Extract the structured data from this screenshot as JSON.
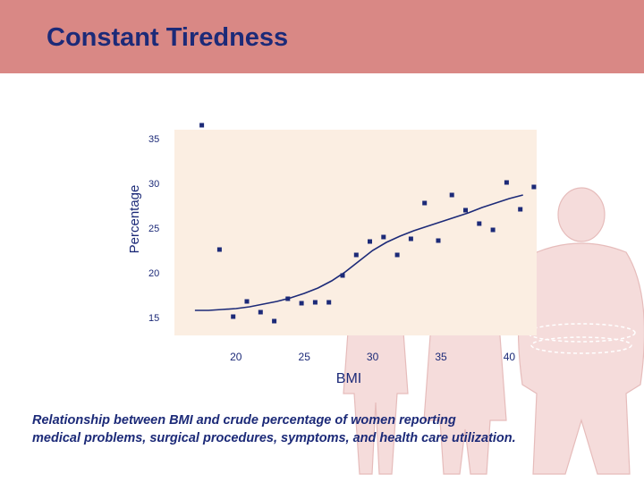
{
  "slide": {
    "title": "Constant Tiredness",
    "caption_line1": "Relationship between BMI and crude percentage of women reporting",
    "caption_line2": "medical problems, surgical procedures, symptoms, and health care utilization."
  },
  "colors": {
    "header": "#d98885",
    "title": "#1c2a78",
    "plot_bg": "#fbeee2",
    "points": "#1c2a78",
    "curve": "#1c2a78",
    "figures": "#f5dcdb"
  },
  "chart_data": {
    "type": "scatter",
    "title": "",
    "xlabel": "BMI",
    "ylabel": "Percentage",
    "xlim": [
      15.5,
      42
    ],
    "ylim": [
      13,
      36
    ],
    "x_ticks": [
      20,
      25,
      30,
      35,
      40
    ],
    "y_ticks": [
      15,
      20,
      25,
      30,
      35
    ],
    "grid": false,
    "legend": "none",
    "points": [
      {
        "x": 17.5,
        "y": 36.5
      },
      {
        "x": 18.8,
        "y": 22.6
      },
      {
        "x": 19.8,
        "y": 15.1
      },
      {
        "x": 20.8,
        "y": 16.8
      },
      {
        "x": 21.8,
        "y": 15.6
      },
      {
        "x": 22.8,
        "y": 14.6
      },
      {
        "x": 23.8,
        "y": 17.1
      },
      {
        "x": 24.8,
        "y": 16.6
      },
      {
        "x": 25.8,
        "y": 16.7
      },
      {
        "x": 26.8,
        "y": 16.7
      },
      {
        "x": 27.8,
        "y": 19.7
      },
      {
        "x": 28.8,
        "y": 22.0
      },
      {
        "x": 29.8,
        "y": 23.5
      },
      {
        "x": 30.8,
        "y": 24.0
      },
      {
        "x": 31.8,
        "y": 22.0
      },
      {
        "x": 32.8,
        "y": 23.8
      },
      {
        "x": 33.8,
        "y": 27.8
      },
      {
        "x": 34.8,
        "y": 23.6
      },
      {
        "x": 35.8,
        "y": 28.7
      },
      {
        "x": 36.8,
        "y": 27.0
      },
      {
        "x": 37.8,
        "y": 25.5
      },
      {
        "x": 38.8,
        "y": 24.8
      },
      {
        "x": 39.8,
        "y": 30.1
      },
      {
        "x": 40.8,
        "y": 27.1
      },
      {
        "x": 41.8,
        "y": 29.6
      }
    ],
    "fit_curve": {
      "x": [
        17,
        18,
        19,
        20,
        21,
        22,
        23,
        24,
        25,
        26,
        27,
        28,
        29,
        30,
        31,
        32,
        33,
        34,
        35,
        36,
        37,
        38,
        39,
        40,
        41
      ],
      "y": [
        15.8,
        15.8,
        15.9,
        16.0,
        16.2,
        16.5,
        16.8,
        17.2,
        17.7,
        18.3,
        19.1,
        20.1,
        21.3,
        22.5,
        23.4,
        24.1,
        24.7,
        25.2,
        25.7,
        26.2,
        26.7,
        27.3,
        27.8,
        28.3,
        28.7
      ]
    }
  }
}
